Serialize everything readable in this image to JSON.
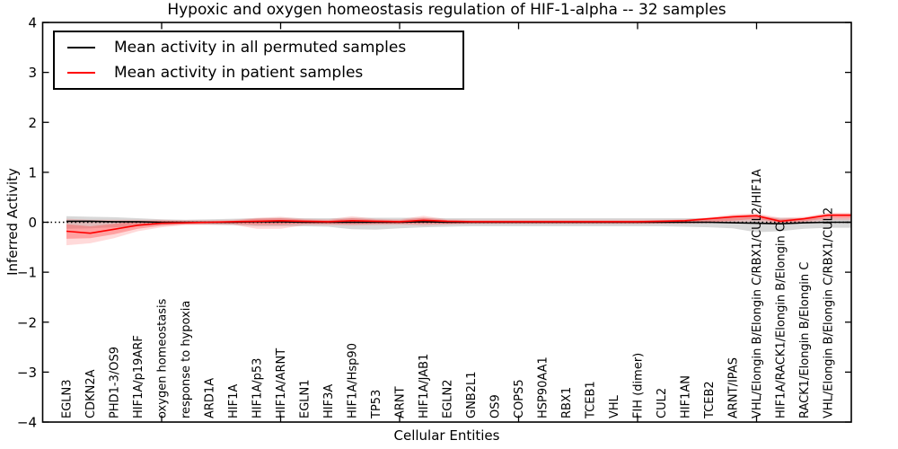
{
  "chart_data": {
    "type": "line",
    "title": "Hypoxic and oxygen homeostasis regulation of HIF-1-alpha -- 32 samples",
    "xlabel": "Cellular Entities",
    "ylabel": "Inferred Activity",
    "ylim": [
      -4,
      4
    ],
    "yticks": [
      4,
      3,
      2,
      1,
      0,
      -1,
      -2,
      -3,
      -4
    ],
    "ytick_labels": [
      "4",
      "3",
      "2",
      "1",
      "0",
      "−1",
      "−2",
      "−3",
      "−4"
    ],
    "x_minor_ticks": [
      5,
      10,
      15,
      20,
      25,
      30
    ],
    "grid": false,
    "legend_position": "upper left",
    "zero_reference_line": {
      "style": "dotted",
      "color": "#000000",
      "value": 0
    },
    "categories": [
      "EGLN3",
      "CDKN2A",
      "PHD1-3/OS9",
      "HIF1A/p19ARF",
      "oxygen homeostasis",
      "response to hypoxia",
      "ARD1A",
      "HIF1A",
      "HIF1A/p53",
      "HIF1A/ARNT",
      "EGLN1",
      "HIF3A",
      "HIF1A/Hsp90",
      "TP53",
      "ARNT",
      "HIF1A/JAB1",
      "EGLN2",
      "GNB2L1",
      "OS9",
      "COPS5",
      "HSP90AA1",
      "RBX1",
      "TCEB1",
      "VHL",
      "FIH (dimer)",
      "CUL2",
      "HIF1AN",
      "TCEB2",
      "ARNT/IPAS",
      "VHL/Elongin B/Elongin C/RBX1/CUL2/HIF1A",
      "HIF1A/RACK1/Elongin B/Elongin C",
      "RACK1/Elongin B/Elongin C",
      "VHL/Elongin B/Elongin C/RBX1/CUL2"
    ],
    "series": [
      {
        "name": "Mean activity in all permuted samples",
        "color": "#000000",
        "values": [
          0.02,
          0.02,
          0.01,
          0.01,
          0,
          0,
          0,
          0,
          0.01,
          0.01,
          0,
          0,
          0,
          0,
          0,
          0.01,
          0,
          0,
          0,
          0,
          0,
          0,
          0,
          0,
          0,
          0,
          0,
          0,
          -0.01,
          -0.02,
          -0.03,
          -0.01,
          0
        ]
      },
      {
        "name": "Mean activity in patient samples",
        "color": "#ff0000",
        "values": [
          -0.18,
          -0.22,
          -0.14,
          -0.06,
          -0.02,
          -0.01,
          0,
          0.01,
          0.02,
          0.03,
          0.02,
          0.01,
          0.03,
          0.02,
          0.01,
          0.04,
          0.02,
          0.01,
          0.01,
          0.01,
          0.01,
          0.01,
          0.01,
          0.01,
          0.01,
          0.02,
          0.03,
          0.07,
          0.11,
          0.13,
          0.02,
          0.07,
          0.14
        ]
      }
    ],
    "bands": [
      {
        "name": "permuted-samples-range",
        "color": "#999999",
        "opacity": 0.38,
        "lo": [
          -0.13,
          -0.12,
          -0.1,
          -0.08,
          -0.05,
          -0.04,
          -0.05,
          -0.06,
          -0.08,
          -0.08,
          -0.08,
          -0.09,
          -0.14,
          -0.15,
          -0.12,
          -0.1,
          -0.09,
          -0.08,
          -0.08,
          -0.08,
          -0.08,
          -0.08,
          -0.08,
          -0.08,
          -0.08,
          -0.08,
          -0.09,
          -0.1,
          -0.12,
          -0.2,
          -0.18,
          -0.13,
          -0.11
        ],
        "hi": [
          0.12,
          0.11,
          0.1,
          0.08,
          0.06,
          0.05,
          0.06,
          0.07,
          0.08,
          0.09,
          0.08,
          0.08,
          0.09,
          0.09,
          0.09,
          0.09,
          0.08,
          0.08,
          0.08,
          0.08,
          0.08,
          0.08,
          0.08,
          0.08,
          0.08,
          0.08,
          0.08,
          0.08,
          0.09,
          0.1,
          0.09,
          0.08,
          0.08
        ]
      },
      {
        "name": "patient-samples-range-outer",
        "color": "#ff5555",
        "opacity": 0.22,
        "lo": [
          -0.46,
          -0.42,
          -0.32,
          -0.18,
          -0.1,
          -0.06,
          -0.05,
          -0.05,
          -0.13,
          -0.13,
          -0.06,
          -0.06,
          -0.07,
          -0.06,
          -0.05,
          -0.07,
          -0.05,
          -0.04,
          -0.04,
          -0.04,
          -0.04,
          -0.04,
          -0.04,
          -0.04,
          -0.04,
          -0.03,
          -0.03,
          -0.02,
          0,
          0.02,
          -0.04,
          -0.01,
          0.04
        ],
        "hi": [
          0.07,
          0.05,
          0.05,
          0.05,
          0.05,
          0.04,
          0.04,
          0.05,
          0.09,
          0.11,
          0.07,
          0.06,
          0.12,
          0.07,
          0.06,
          0.13,
          0.06,
          0.05,
          0.05,
          0.05,
          0.05,
          0.05,
          0.05,
          0.05,
          0.05,
          0.05,
          0.06,
          0.1,
          0.16,
          0.18,
          0.09,
          0.11,
          0.19
        ]
      },
      {
        "name": "patient-samples-range-inner",
        "color": "#ff4444",
        "opacity": 0.38,
        "lo": [
          -0.33,
          -0.32,
          -0.24,
          -0.13,
          -0.07,
          -0.04,
          -0.03,
          -0.03,
          -0.05,
          -0.05,
          -0.03,
          -0.03,
          -0.04,
          -0.03,
          -0.03,
          -0.03,
          -0.03,
          -0.02,
          -0.02,
          -0.02,
          -0.02,
          -0.02,
          -0.02,
          -0.02,
          -0.02,
          -0.02,
          -0.01,
          0,
          0.03,
          0.07,
          -0.01,
          0.02,
          0.08
        ],
        "hi": [
          -0.04,
          -0.08,
          -0.03,
          0.02,
          0.03,
          0.02,
          0.02,
          0.03,
          0.07,
          0.08,
          0.05,
          0.04,
          0.08,
          0.05,
          0.04,
          0.09,
          0.04,
          0.03,
          0.03,
          0.03,
          0.03,
          0.03,
          0.03,
          0.03,
          0.03,
          0.04,
          0.05,
          0.08,
          0.13,
          0.16,
          0.06,
          0.09,
          0.17
        ]
      }
    ]
  }
}
